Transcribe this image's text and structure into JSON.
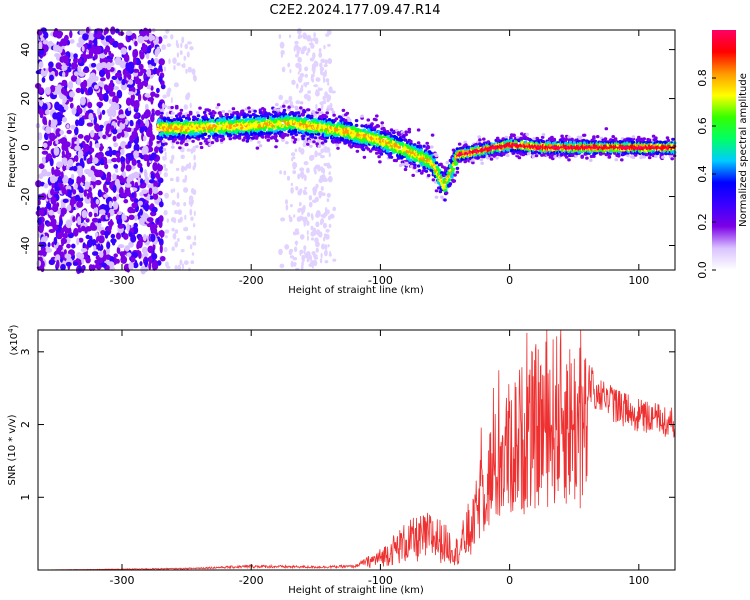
{
  "title": "C2E2.2024.177.09.47.R14",
  "chart_data": [
    {
      "type": "heatmap",
      "xlabel": "Height of straight line (km)",
      "ylabel": "Frequency (Hz)",
      "xlim": [
        -365,
        128
      ],
      "ylim": [
        -50,
        48
      ],
      "xticks": [
        -300,
        -200,
        -100,
        0,
        100
      ],
      "yticks": [
        -40,
        -20,
        0,
        20,
        40
      ],
      "colorbar": {
        "label": "Normalized spectral amplitude",
        "range": [
          0,
          1
        ],
        "ticks": [
          0.0,
          0.2,
          0.4,
          0.6,
          0.8
        ],
        "tick_labels": [
          "0.0",
          "0.2",
          "0.4",
          "0.6",
          "0.8"
        ],
        "colors": [
          "#ffffff",
          "#d9c2ff",
          "#7b00e6",
          "#3a00ff",
          "#0000ff",
          "#00ccff",
          "#00ff66",
          "#33ff00",
          "#ffff00",
          "#ff9900",
          "#ff0000",
          "#ff0066"
        ]
      },
      "ridge": {
        "description_points_x": [
          -272,
          -250,
          -200,
          -170,
          -130,
          -100,
          -80,
          -60,
          -50,
          -40,
          -20,
          0,
          30,
          60,
          128
        ],
        "frequency_y": [
          8,
          8,
          9,
          10,
          7,
          3,
          -1,
          -6,
          -16,
          -3,
          -1,
          1,
          0,
          0,
          0
        ]
      }
    },
    {
      "type": "line",
      "xlabel": "Height of straight line (km)",
      "ylabel": "SNR (10 * v/v)",
      "multiplier": "(x10",
      "multiplier_exp": "4",
      "multiplier_close": ")",
      "xlim": [
        -365,
        128
      ],
      "ylim": [
        0,
        3.3
      ],
      "xticks": [
        -300,
        -200,
        -100,
        0,
        100
      ],
      "yticks": [
        1,
        2,
        3
      ],
      "color": "#ee3030",
      "envelope": {
        "x": [
          -365,
          -250,
          -200,
          -150,
          -120,
          -100,
          -80,
          -60,
          -40,
          -30,
          -20,
          0,
          20,
          40,
          60,
          80,
          100,
          128
        ],
        "y": [
          0.0,
          0.02,
          0.05,
          0.04,
          0.05,
          0.2,
          0.45,
          0.55,
          0.3,
          0.7,
          1.6,
          2.3,
          2.7,
          2.9,
          2.6,
          2.3,
          2.15,
          2.05
        ]
      }
    }
  ]
}
